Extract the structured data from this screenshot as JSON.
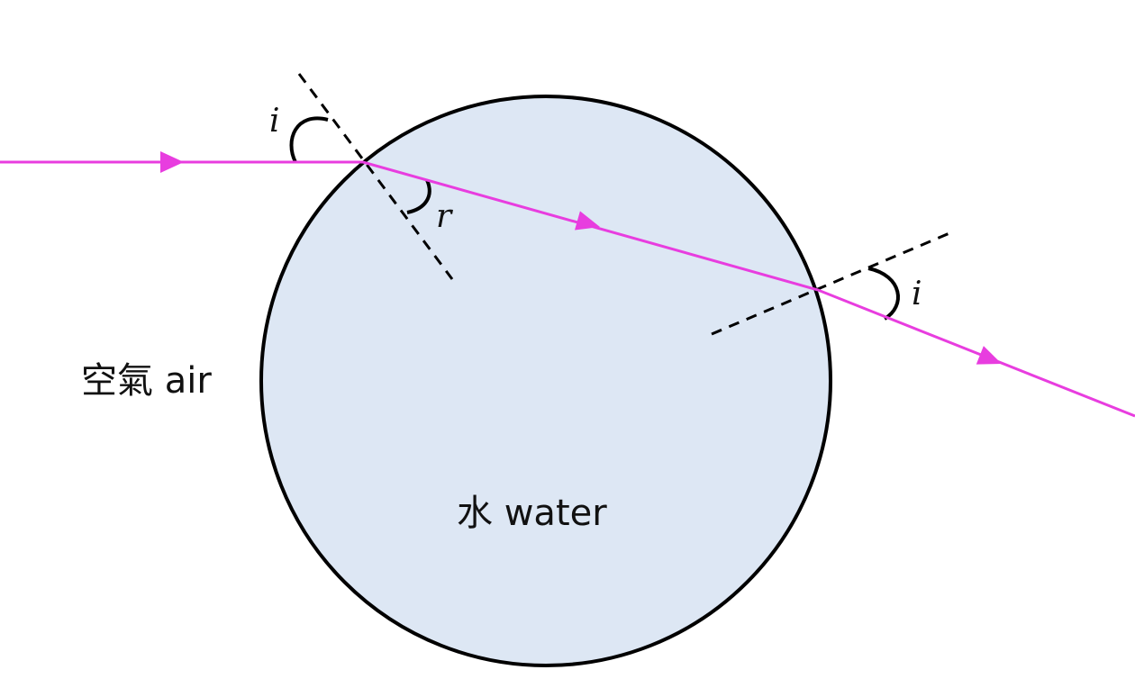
{
  "labels": {
    "air": "空氣 air",
    "water": "水 water",
    "angle_incidence_entry": "i",
    "angle_refraction_entry": "r",
    "angle_emergence_exit": "i"
  },
  "colors": {
    "ray": "#e83ddf",
    "droplet_fill": "#dde7f4",
    "outline": "#000000"
  }
}
